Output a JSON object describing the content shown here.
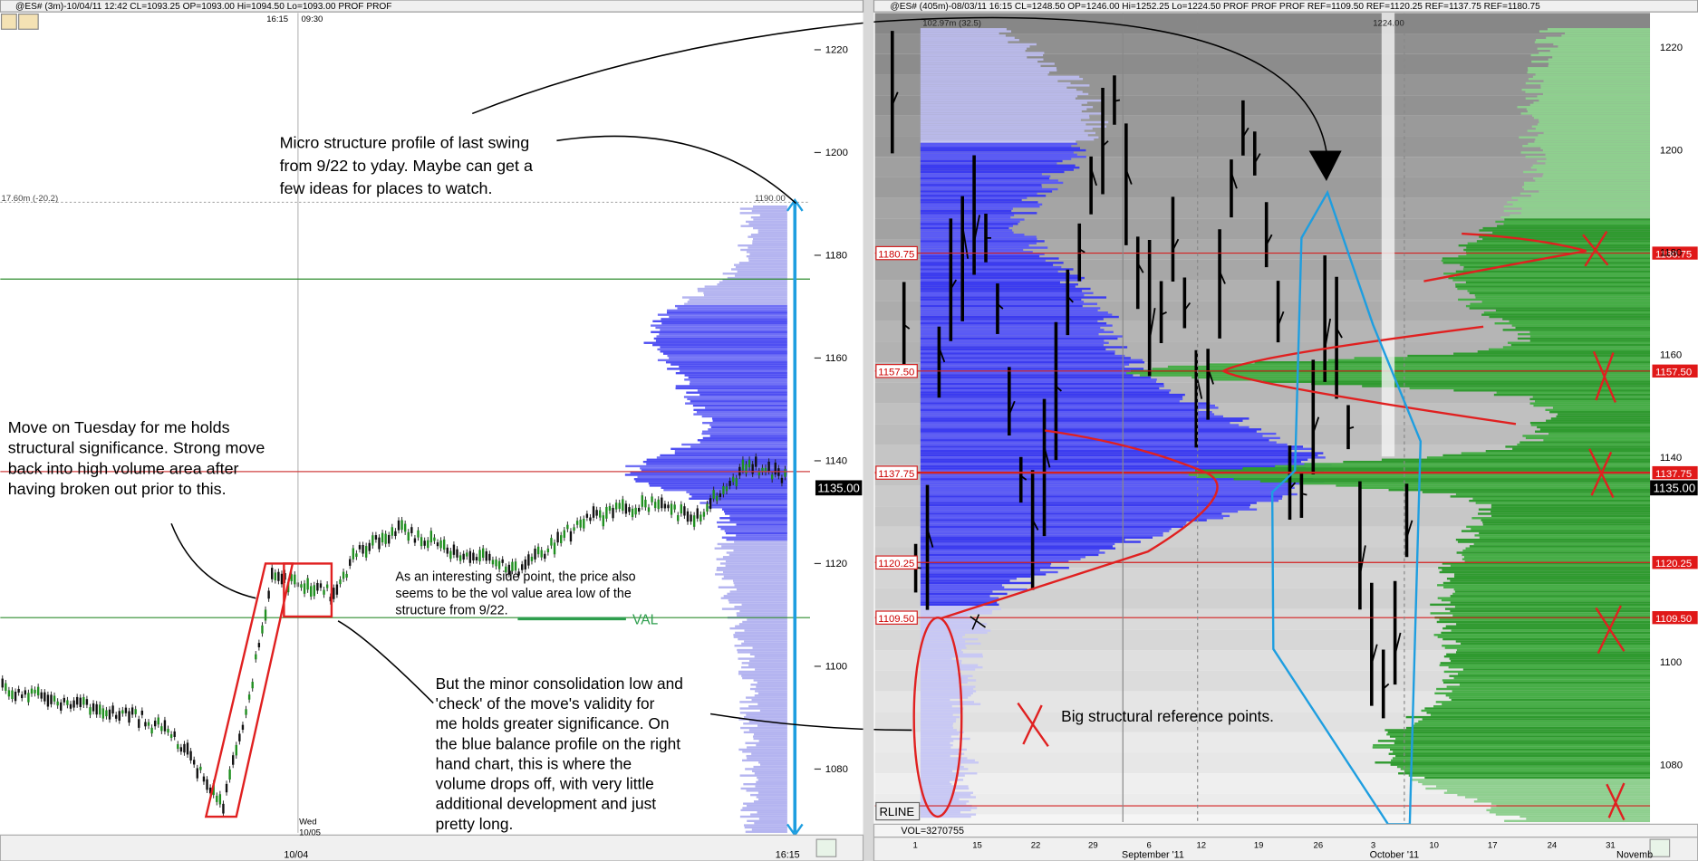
{
  "left_panel": {
    "header": "@ES# (3m)-10/04/11 12:42 CL=1093.25 OP=1093.00 Hi=1094.50 Lo=1093.00 PROF PROF",
    "time_labels": [
      "16:15",
      "09:30"
    ],
    "price_axis": [
      1220,
      1200,
      1180,
      1160,
      1140,
      1120,
      1100,
      1080
    ],
    "profile_label": "17.60m (-20.2)",
    "profile_top": "1190.00",
    "current_price": "1135.00",
    "x_axis": [
      "10/04",
      "16:15"
    ],
    "day_label": [
      "Wed",
      "10/05"
    ],
    "val_label": "VAL"
  },
  "right_panel": {
    "header": "@ES# (405m)-08/03/11 16:15 CL=1248.50 OP=1246.00 Hi=1252.25 Lo=1224.50 PROF PROF PROF REF=1109.50 REF=1120.25 REF=1137.75 REF=1180.75",
    "profile_label": "102.97m (32.5)",
    "top_label": "1224.00",
    "levels": [
      "1180.75",
      "1157.50",
      "1137.75",
      "1120.25",
      "1109.50"
    ],
    "price_axis": [
      1220,
      1200,
      1180,
      1160,
      1140,
      1100,
      1080
    ],
    "current_price": "1135.00",
    "volume": "VOL=3270755",
    "rline": "RLINE",
    "x_days": [
      "1",
      "15",
      "22",
      "29",
      "6",
      "12",
      "19",
      "26",
      "3",
      "10",
      "17",
      "24",
      "31"
    ],
    "x_months": [
      "September '11",
      "October '11",
      "Novemb"
    ]
  },
  "annotations": {
    "micro": [
      "Micro structure profile of last swing",
      "from 9/22 to yday. Maybe can get a",
      "few ideas for places to watch."
    ],
    "tuesday": [
      "Move on Tuesday for me holds",
      "structural significance. Strong move",
      "back into high volume area after",
      "having broken out prior to this."
    ],
    "side_point": [
      "As an interesting side point, the price also",
      "seems to be the vol value area low of the",
      "structure from 9/22."
    ],
    "consolidation": [
      "But the minor consolidation low and",
      "'check' of the move's validity for",
      "me holds greater significance. On",
      "the blue balance profile on the right",
      "hand chart, this is where the",
      "volume drops off, with very little",
      "additional development and just",
      "pretty long."
    ],
    "big_ref": "Big structural reference points."
  }
}
